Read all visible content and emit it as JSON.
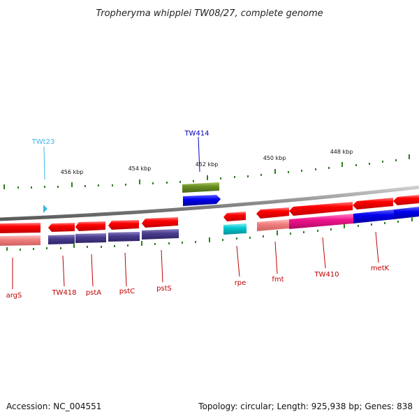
{
  "title": "Tropheryma whipplei TW08/27, complete genome",
  "footer": {
    "accession": "Accession: NC_004551",
    "topology": "Topology: circular; Length: 925,938 bp; Genes: 838"
  },
  "scale_labels": [
    "456 kbp",
    "454 kbp",
    "452 kbp",
    "450 kbp",
    "448 kbp"
  ],
  "upper_labels": [
    {
      "text": "TWt23",
      "color": "#3fb6e8"
    },
    {
      "text": "TW414",
      "color": "#0000c0"
    }
  ],
  "lower_labels": [
    "argS",
    "TW418",
    "pstA",
    "pstC",
    "pstS",
    "rpe",
    "fmt",
    "TW410",
    "metK"
  ],
  "colors": {
    "backbone": "#8a8a8a",
    "tick": "#2e7d1e",
    "gene_red": "#ff0000",
    "gene_pink_light": "#f08080",
    "gene_purple": "#4b3d8f",
    "gene_olive": "#6b8e23",
    "gene_blue": "#0000ee",
    "gene_cyan": "#00c8d0",
    "gene_magenta": "#f0148c",
    "label_red": "#c00000"
  }
}
